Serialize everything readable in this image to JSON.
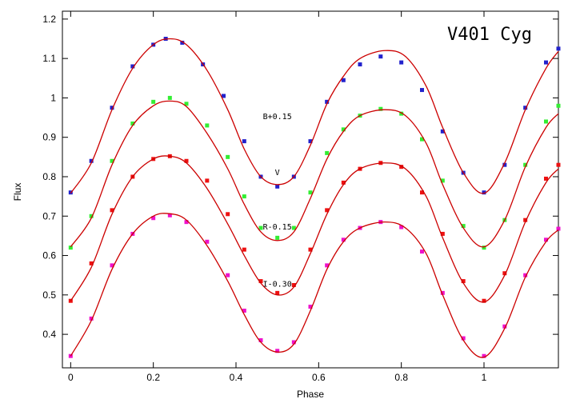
{
  "chart_data": {
    "type": "scatter",
    "title": "V401 Cyg",
    "xlabel": "Phase",
    "ylabel": "Flux",
    "xlim": [
      -0.02,
      1.18
    ],
    "ylim": [
      0.315,
      1.22
    ],
    "xticks": [
      0,
      0.2,
      0.4,
      0.6,
      0.8,
      1
    ],
    "xtick_labels": [
      "0",
      "0.2",
      "0.4",
      "0.6",
      "0.8",
      "1"
    ],
    "yticks": [
      0.4,
      0.5,
      0.6,
      0.7,
      0.8,
      0.9,
      1.0,
      1.1,
      1.2
    ],
    "ytick_labels": [
      "0.4",
      "0.5",
      "0.6",
      "0.7",
      "0.8",
      "0.9",
      "1",
      "1.1",
      "1.2"
    ],
    "grid": false,
    "series": [
      {
        "name": "B+0.15",
        "color": "#2222cc",
        "points": [
          [
            0.0,
            0.76
          ],
          [
            0.05,
            0.84
          ],
          [
            0.1,
            0.975
          ],
          [
            0.15,
            1.08
          ],
          [
            0.2,
            1.135
          ],
          [
            0.23,
            1.15
          ],
          [
            0.27,
            1.14
          ],
          [
            0.32,
            1.085
          ],
          [
            0.37,
            1.005
          ],
          [
            0.42,
            0.89
          ],
          [
            0.46,
            0.8
          ],
          [
            0.5,
            0.775
          ],
          [
            0.54,
            0.8
          ],
          [
            0.58,
            0.89
          ],
          [
            0.62,
            0.99
          ],
          [
            0.66,
            1.045
          ],
          [
            0.7,
            1.085
          ],
          [
            0.75,
            1.105
          ],
          [
            0.8,
            1.09
          ],
          [
            0.85,
            1.02
          ],
          [
            0.9,
            0.915
          ],
          [
            0.95,
            0.81
          ],
          [
            1.0,
            0.76
          ],
          [
            1.05,
            0.83
          ],
          [
            1.1,
            0.975
          ],
          [
            1.15,
            1.09
          ],
          [
            1.18,
            1.125
          ]
        ],
        "model": [
          [
            0.0,
            0.758
          ],
          [
            0.05,
            0.835
          ],
          [
            0.1,
            0.97
          ],
          [
            0.15,
            1.075
          ],
          [
            0.2,
            1.135
          ],
          [
            0.24,
            1.15
          ],
          [
            0.28,
            1.135
          ],
          [
            0.33,
            1.07
          ],
          [
            0.38,
            0.97
          ],
          [
            0.42,
            0.87
          ],
          [
            0.46,
            0.8
          ],
          [
            0.5,
            0.78
          ],
          [
            0.54,
            0.8
          ],
          [
            0.58,
            0.88
          ],
          [
            0.62,
            0.985
          ],
          [
            0.66,
            1.055
          ],
          [
            0.7,
            1.1
          ],
          [
            0.76,
            1.12
          ],
          [
            0.81,
            1.105
          ],
          [
            0.86,
            1.03
          ],
          [
            0.9,
            0.925
          ],
          [
            0.95,
            0.81
          ],
          [
            1.0,
            0.758
          ],
          [
            1.05,
            0.835
          ],
          [
            1.1,
            0.97
          ],
          [
            1.15,
            1.075
          ],
          [
            1.18,
            1.118
          ]
        ]
      },
      {
        "name": "V",
        "color": "#33ee33",
        "points": [
          [
            0.0,
            0.62
          ],
          [
            0.05,
            0.7
          ],
          [
            0.1,
            0.84
          ],
          [
            0.15,
            0.935
          ],
          [
            0.2,
            0.99
          ],
          [
            0.24,
            1.0
          ],
          [
            0.28,
            0.985
          ],
          [
            0.33,
            0.93
          ],
          [
            0.38,
            0.85
          ],
          [
            0.42,
            0.75
          ],
          [
            0.46,
            0.67
          ],
          [
            0.5,
            0.645
          ],
          [
            0.54,
            0.67
          ],
          [
            0.58,
            0.76
          ],
          [
            0.62,
            0.86
          ],
          [
            0.66,
            0.92
          ],
          [
            0.7,
            0.955
          ],
          [
            0.75,
            0.972
          ],
          [
            0.8,
            0.96
          ],
          [
            0.85,
            0.895
          ],
          [
            0.9,
            0.79
          ],
          [
            0.95,
            0.675
          ],
          [
            1.0,
            0.62
          ],
          [
            1.05,
            0.69
          ],
          [
            1.1,
            0.83
          ],
          [
            1.15,
            0.94
          ],
          [
            1.18,
            0.98
          ]
        ],
        "model": [
          [
            0.0,
            0.622
          ],
          [
            0.05,
            0.695
          ],
          [
            0.1,
            0.83
          ],
          [
            0.15,
            0.93
          ],
          [
            0.2,
            0.98
          ],
          [
            0.24,
            0.992
          ],
          [
            0.28,
            0.978
          ],
          [
            0.33,
            0.91
          ],
          [
            0.38,
            0.82
          ],
          [
            0.42,
            0.73
          ],
          [
            0.46,
            0.66
          ],
          [
            0.5,
            0.638
          ],
          [
            0.54,
            0.66
          ],
          [
            0.58,
            0.745
          ],
          [
            0.62,
            0.845
          ],
          [
            0.66,
            0.915
          ],
          [
            0.7,
            0.955
          ],
          [
            0.76,
            0.97
          ],
          [
            0.81,
            0.955
          ],
          [
            0.86,
            0.885
          ],
          [
            0.9,
            0.78
          ],
          [
            0.95,
            0.67
          ],
          [
            1.0,
            0.622
          ],
          [
            1.05,
            0.69
          ],
          [
            1.1,
            0.825
          ],
          [
            1.15,
            0.925
          ],
          [
            1.18,
            0.96
          ]
        ]
      },
      {
        "name": "R-0.15",
        "color": "#ee1111",
        "points": [
          [
            0.0,
            0.485
          ],
          [
            0.05,
            0.58
          ],
          [
            0.1,
            0.715
          ],
          [
            0.15,
            0.8
          ],
          [
            0.2,
            0.845
          ],
          [
            0.24,
            0.852
          ],
          [
            0.28,
            0.84
          ],
          [
            0.33,
            0.79
          ],
          [
            0.38,
            0.705
          ],
          [
            0.42,
            0.615
          ],
          [
            0.46,
            0.535
          ],
          [
            0.5,
            0.505
          ],
          [
            0.54,
            0.525
          ],
          [
            0.58,
            0.615
          ],
          [
            0.62,
            0.715
          ],
          [
            0.66,
            0.785
          ],
          [
            0.7,
            0.82
          ],
          [
            0.75,
            0.835
          ],
          [
            0.8,
            0.825
          ],
          [
            0.85,
            0.76
          ],
          [
            0.9,
            0.655
          ],
          [
            0.95,
            0.535
          ],
          [
            1.0,
            0.485
          ],
          [
            1.05,
            0.555
          ],
          [
            1.1,
            0.69
          ],
          [
            1.15,
            0.795
          ],
          [
            1.18,
            0.83
          ]
        ],
        "model": [
          [
            0.0,
            0.485
          ],
          [
            0.05,
            0.57
          ],
          [
            0.1,
            0.705
          ],
          [
            0.15,
            0.8
          ],
          [
            0.2,
            0.845
          ],
          [
            0.24,
            0.852
          ],
          [
            0.28,
            0.835
          ],
          [
            0.33,
            0.77
          ],
          [
            0.38,
            0.68
          ],
          [
            0.42,
            0.6
          ],
          [
            0.46,
            0.53
          ],
          [
            0.5,
            0.5
          ],
          [
            0.54,
            0.52
          ],
          [
            0.58,
            0.605
          ],
          [
            0.62,
            0.705
          ],
          [
            0.66,
            0.78
          ],
          [
            0.7,
            0.82
          ],
          [
            0.76,
            0.835
          ],
          [
            0.81,
            0.82
          ],
          [
            0.86,
            0.75
          ],
          [
            0.9,
            0.645
          ],
          [
            0.95,
            0.53
          ],
          [
            1.0,
            0.482
          ],
          [
            1.05,
            0.55
          ],
          [
            1.1,
            0.685
          ],
          [
            1.15,
            0.785
          ],
          [
            1.18,
            0.82
          ]
        ]
      },
      {
        "name": "I-0.30",
        "color": "#ee11cc",
        "points": [
          [
            0.0,
            0.345
          ],
          [
            0.05,
            0.44
          ],
          [
            0.1,
            0.575
          ],
          [
            0.15,
            0.655
          ],
          [
            0.2,
            0.695
          ],
          [
            0.24,
            0.702
          ],
          [
            0.28,
            0.685
          ],
          [
            0.33,
            0.635
          ],
          [
            0.38,
            0.55
          ],
          [
            0.42,
            0.46
          ],
          [
            0.46,
            0.385
          ],
          [
            0.5,
            0.358
          ],
          [
            0.54,
            0.38
          ],
          [
            0.58,
            0.47
          ],
          [
            0.62,
            0.575
          ],
          [
            0.66,
            0.64
          ],
          [
            0.7,
            0.67
          ],
          [
            0.75,
            0.685
          ],
          [
            0.8,
            0.672
          ],
          [
            0.85,
            0.61
          ],
          [
            0.9,
            0.505
          ],
          [
            0.95,
            0.39
          ],
          [
            1.0,
            0.345
          ],
          [
            1.05,
            0.42
          ],
          [
            1.1,
            0.55
          ],
          [
            1.15,
            0.64
          ],
          [
            1.18,
            0.668
          ]
        ],
        "model": [
          [
            0.0,
            0.345
          ],
          [
            0.05,
            0.435
          ],
          [
            0.1,
            0.565
          ],
          [
            0.15,
            0.655
          ],
          [
            0.2,
            0.7
          ],
          [
            0.24,
            0.706
          ],
          [
            0.28,
            0.69
          ],
          [
            0.33,
            0.625
          ],
          [
            0.38,
            0.535
          ],
          [
            0.42,
            0.45
          ],
          [
            0.46,
            0.38
          ],
          [
            0.5,
            0.355
          ],
          [
            0.54,
            0.375
          ],
          [
            0.58,
            0.46
          ],
          [
            0.62,
            0.565
          ],
          [
            0.66,
            0.635
          ],
          [
            0.7,
            0.67
          ],
          [
            0.76,
            0.685
          ],
          [
            0.81,
            0.67
          ],
          [
            0.86,
            0.605
          ],
          [
            0.9,
            0.5
          ],
          [
            0.95,
            0.385
          ],
          [
            1.0,
            0.342
          ],
          [
            1.05,
            0.415
          ],
          [
            1.1,
            0.545
          ],
          [
            1.15,
            0.635
          ],
          [
            1.18,
            0.665
          ]
        ]
      }
    ],
    "model_color": "#cc0000"
  }
}
